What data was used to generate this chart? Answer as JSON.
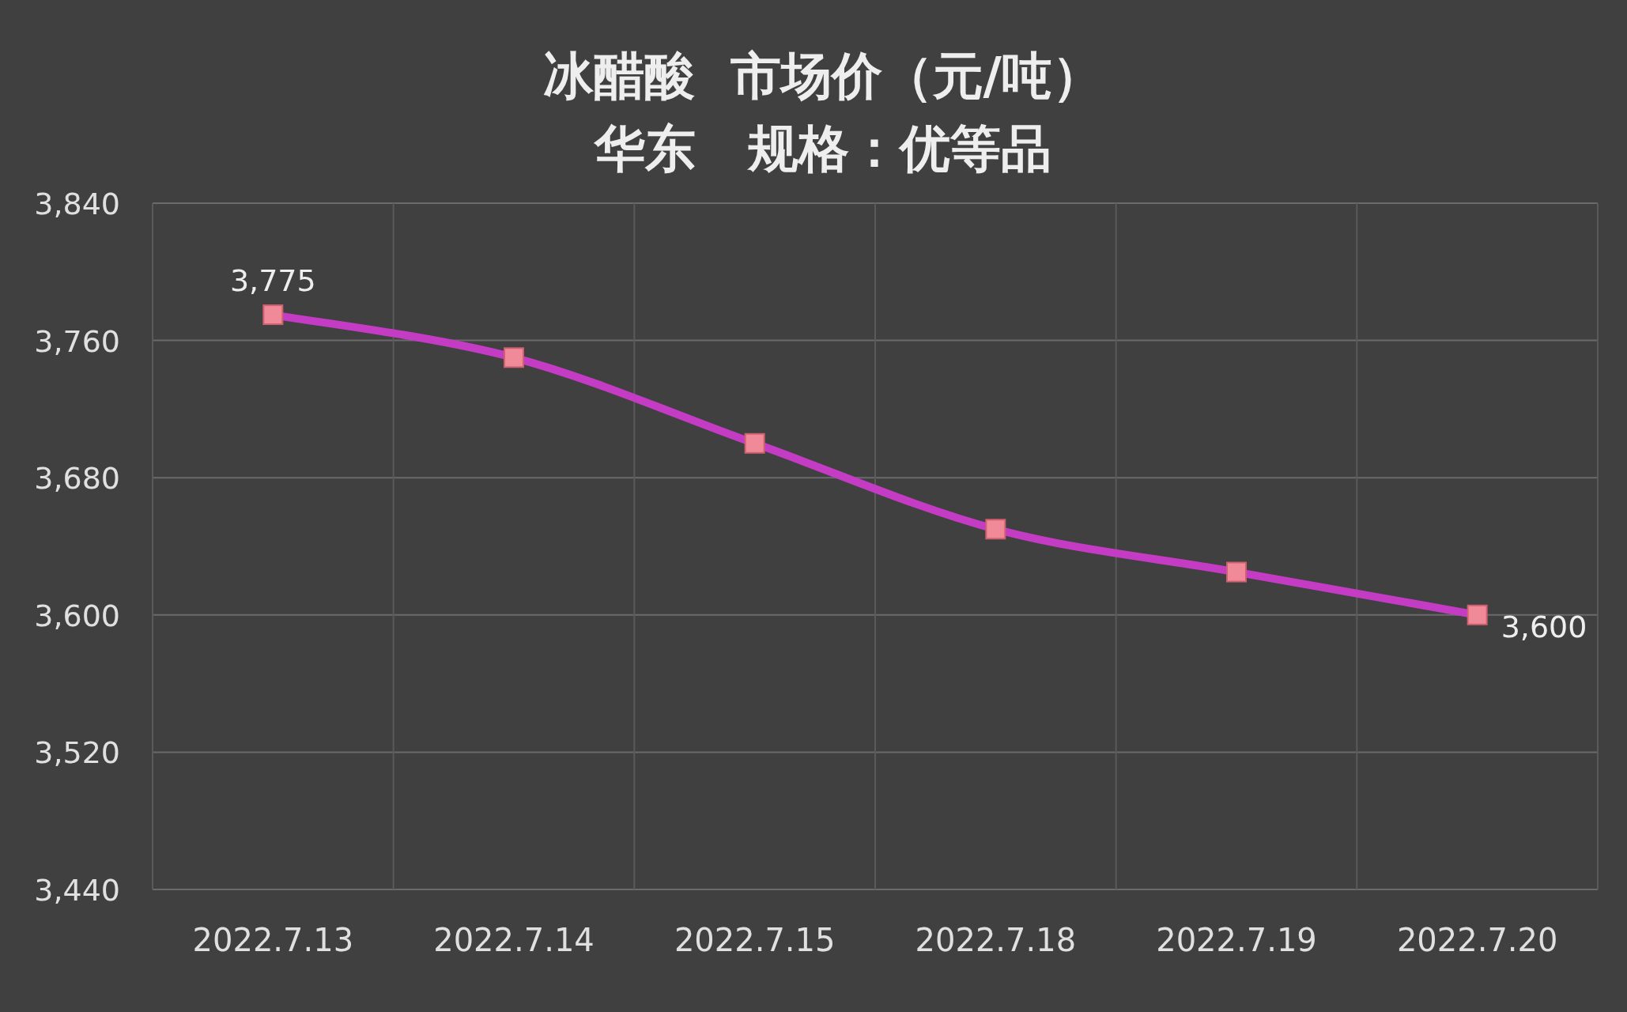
{
  "chart_data": {
    "type": "line",
    "title": "冰醋酸  市场价（元/吨）",
    "subtitle": "华东   规格：优等品",
    "categories": [
      "2022.7.13",
      "2022.7.14",
      "2022.7.15",
      "2022.7.18",
      "2022.7.19",
      "2022.7.20"
    ],
    "series": [
      {
        "color": "#c43cc4",
        "values": [
          3775,
          3750,
          3700,
          3650,
          3625,
          3600
        ],
        "value_labels": [
          "3,775",
          null,
          null,
          null,
          null,
          "3,600"
        ]
      }
    ],
    "ylim": [
      3440,
      3840
    ],
    "yticks": [
      {
        "value": 3440,
        "label": "3,440"
      },
      {
        "value": 3520,
        "label": "3,520"
      },
      {
        "value": 3600,
        "label": "3,600"
      },
      {
        "value": 3680,
        "label": "3,680"
      },
      {
        "value": 3760,
        "label": "3,760"
      },
      {
        "value": 3840,
        "label": "3,840"
      }
    ],
    "grid": true,
    "marker": "square"
  }
}
